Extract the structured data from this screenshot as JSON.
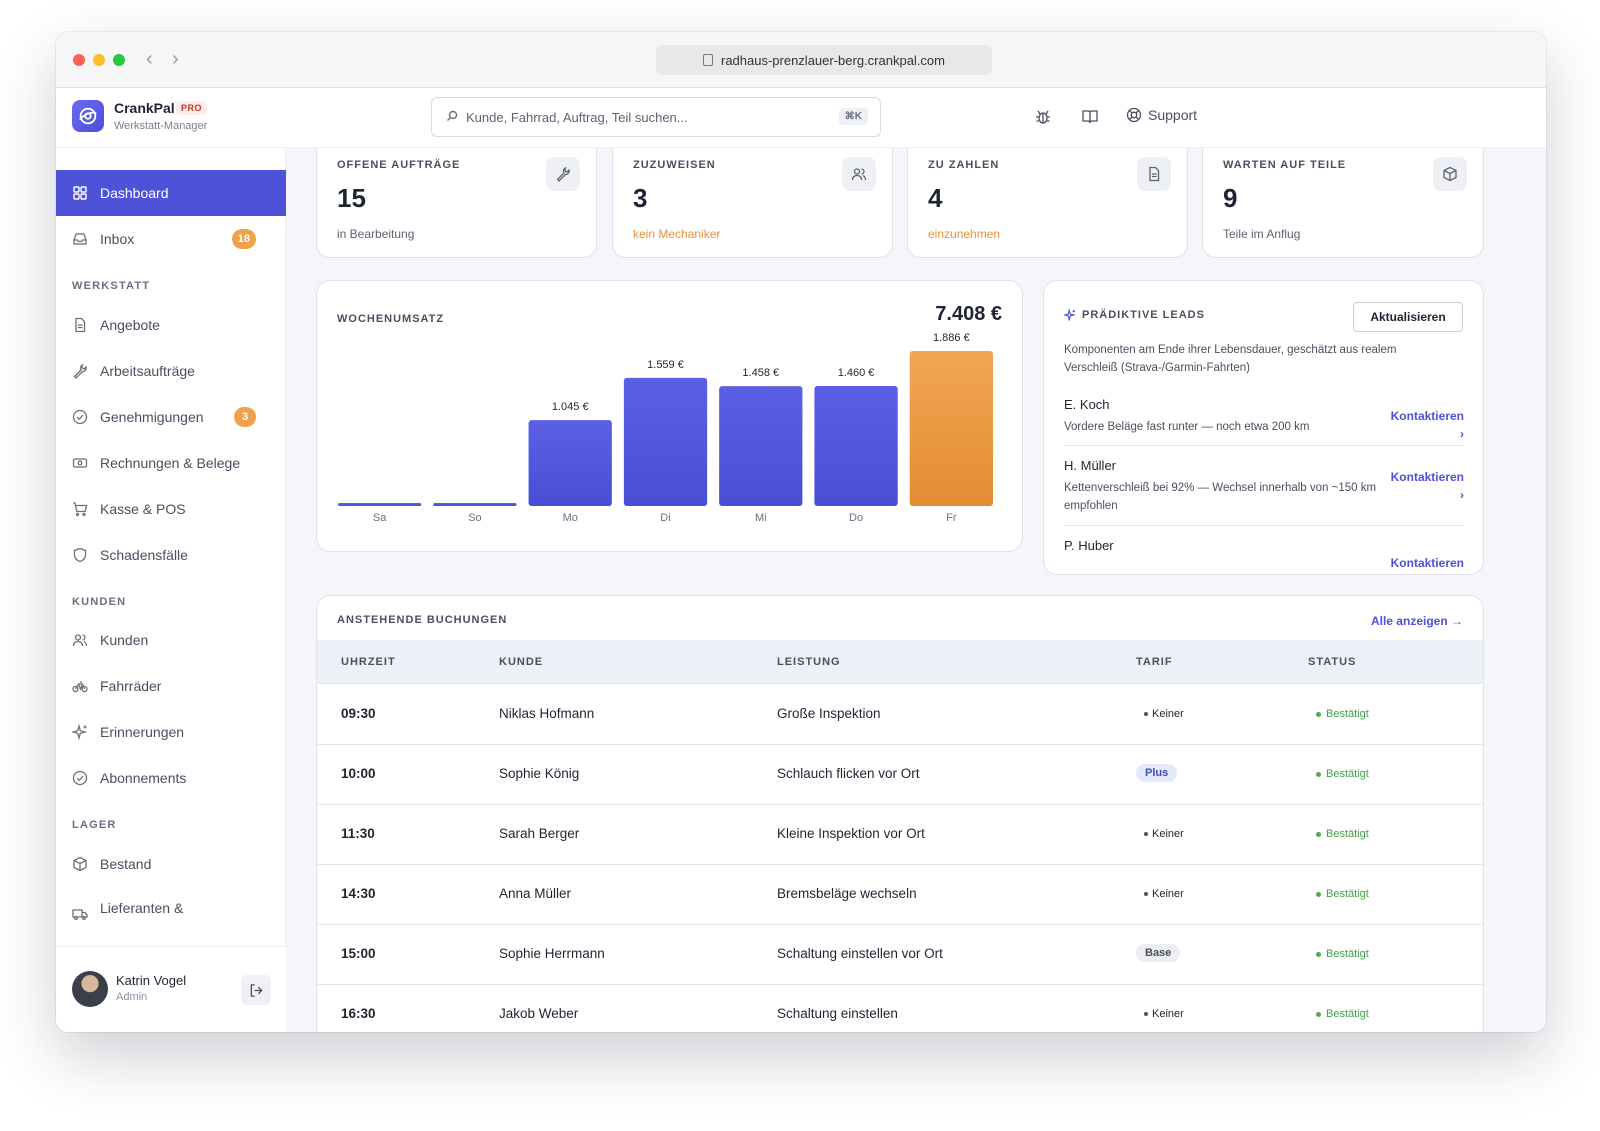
{
  "browser": {
    "url": "radhaus-prenzlauer-berg.crankpal.com"
  },
  "brand": {
    "name": "CrankPal",
    "badge": "PRO",
    "subtitle": "Werkstatt-Manager"
  },
  "search": {
    "placeholder": "Kunde, Fahrrad, Auftrag, Teil suchen...",
    "shortcut": "⌘K"
  },
  "header": {
    "support_label": "Support"
  },
  "sidebar": {
    "items": [
      {
        "label": "Dashboard",
        "icon": "grid-icon"
      },
      {
        "label": "Inbox",
        "icon": "inbox-icon",
        "badge": "18"
      }
    ],
    "sections": [
      {
        "title": "WERKSTATT",
        "items": [
          {
            "label": "Angebote",
            "icon": "document-icon"
          },
          {
            "label": "Arbeitsaufträge",
            "icon": "wrench-icon"
          },
          {
            "label": "Genehmigungen",
            "icon": "check-circle-icon",
            "badge": "3"
          },
          {
            "label": "Rechnungen & Belege",
            "icon": "banknote-icon"
          },
          {
            "label": "Kasse & POS",
            "icon": "cart-icon"
          },
          {
            "label": "Schadensfälle",
            "icon": "shield-icon"
          }
        ]
      },
      {
        "title": "KUNDEN",
        "items": [
          {
            "label": "Kunden",
            "icon": "users-icon"
          },
          {
            "label": "Fahrräder",
            "icon": "bicycle-icon"
          },
          {
            "label": "Erinnerungen",
            "icon": "sparkle-icon"
          },
          {
            "label": "Abonnements",
            "icon": "check-circle-icon"
          }
        ]
      },
      {
        "title": "LAGER",
        "items": [
          {
            "label": "Bestand",
            "icon": "box-icon"
          },
          {
            "label": "Lieferanten &",
            "icon": "truck-icon"
          }
        ]
      }
    ]
  },
  "user": {
    "name": "Katrin Vogel",
    "role": "Admin"
  },
  "stats": [
    {
      "label": "OFFENE AUFTRÄGE",
      "value": "15",
      "sub": "in Bearbeitung",
      "sub_color": "#5e6374",
      "icon": "wrench-icon"
    },
    {
      "label": "ZUZUWEISEN",
      "value": "3",
      "sub": "kein Mechaniker",
      "sub_color": "#e8923a",
      "icon": "users-icon"
    },
    {
      "label": "ZU ZAHLEN",
      "value": "4",
      "sub": "einzunehmen",
      "sub_color": "#e8923a",
      "icon": "document-icon"
    },
    {
      "label": "WARTEN AUF TEILE",
      "value": "9",
      "sub": "Teile im Anflug",
      "sub_color": "#5e6374",
      "icon": "box-icon"
    }
  ],
  "chart": {
    "title": "WOCHENUMSATZ",
    "total": "7.408 €"
  },
  "chart_data": {
    "type": "bar",
    "title": "WOCHENUMSATZ",
    "categories": [
      "Sa",
      "So",
      "Mo",
      "Di",
      "Mi",
      "Do",
      "Fr"
    ],
    "values": [
      0,
      0,
      1045,
      1559,
      1458,
      1460,
      1886
    ],
    "value_labels": [
      "",
      "",
      "1.045 €",
      "1.559 €",
      "1.458 €",
      "1.460 €",
      "1.886 €"
    ],
    "highlight_index": 6,
    "colors": {
      "default": "#5457de",
      "highlight": "#ee9c45"
    },
    "ylim": [
      0,
      1886
    ],
    "grid": false,
    "legend": "none"
  },
  "leads": {
    "title": "PRÄDIKTIVE LEADS",
    "refresh_label": "Aktualisieren",
    "description": "Komponenten am Ende ihrer Lebensdauer, geschätzt aus realem Verschleiß (Strava-/Garmin-Fahrten)",
    "items": [
      {
        "name": "E. Koch",
        "text": "Vordere Beläge fast runter — noch etwa 200 km",
        "action": "Kontaktieren ›"
      },
      {
        "name": "H. Müller",
        "text": "Kettenverschleiß bei 92% — Wechsel innerhalb von ~150 km empfohlen",
        "action": "Kontaktieren ›"
      },
      {
        "name": "P. Huber",
        "text": "",
        "action": "Kontaktieren ›"
      }
    ]
  },
  "bookings": {
    "title": "ANSTEHENDE BUCHUNGEN",
    "show_all": "Alle anzeigen →",
    "columns": [
      "UHRZEIT",
      "KUNDE",
      "LEISTUNG",
      "TARIF",
      "STATUS"
    ],
    "rows": [
      {
        "time": "09:30",
        "customer": "Niklas Hofmann",
        "service": "Große Inspektion",
        "tarif": "Keiner",
        "tarif_style": "plain",
        "status": "Bestätigt"
      },
      {
        "time": "10:00",
        "customer": "Sophie König",
        "service": "Schlauch flicken vor Ort",
        "tarif": "Plus",
        "tarif_style": "plus",
        "status": "Bestätigt"
      },
      {
        "time": "11:30",
        "customer": "Sarah Berger",
        "service": "Kleine Inspektion vor Ort",
        "tarif": "Keiner",
        "tarif_style": "plain",
        "status": "Bestätigt"
      },
      {
        "time": "14:30",
        "customer": "Anna Müller",
        "service": "Bremsbeläge wechseln",
        "tarif": "Keiner",
        "tarif_style": "plain",
        "status": "Bestätigt"
      },
      {
        "time": "15:00",
        "customer": "Sophie Herrmann",
        "service": "Schaltung einstellen vor Ort",
        "tarif": "Base",
        "tarif_style": "base",
        "status": "Bestätigt"
      },
      {
        "time": "16:30",
        "customer": "Jakob Weber",
        "service": "Schaltung einstellen",
        "tarif": "Keiner",
        "tarif_style": "plain",
        "status": "Bestätigt"
      }
    ]
  }
}
